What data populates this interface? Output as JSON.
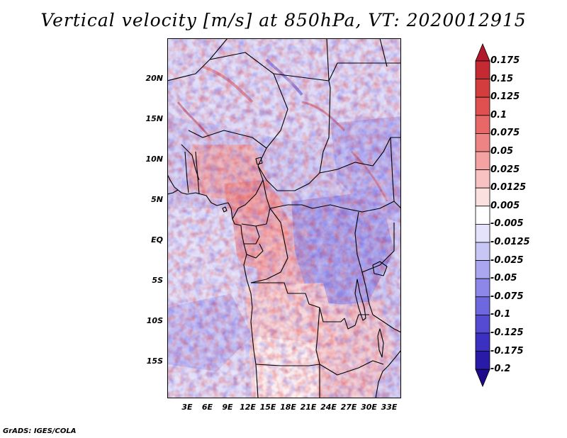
{
  "title": "Vertical velocity [m/s] at 850hPa, VT: 2020012915",
  "credit": "GrADS: IGES/COLA",
  "latitude_labels": [
    "20N",
    "15N",
    "10N",
    "5N",
    "EQ",
    "5S",
    "10S",
    "15S"
  ],
  "longitude_labels": [
    "3E",
    "6E",
    "9E",
    "12E",
    "15E",
    "18E",
    "21E",
    "24E",
    "27E",
    "30E",
    "33E"
  ],
  "colorbar": {
    "labels": [
      "0.175",
      "0.15",
      "0.125",
      "0.1",
      "0.075",
      "0.05",
      "0.025",
      "0.0125",
      "0.005",
      "-0.005",
      "-0.0125",
      "-0.025",
      "-0.05",
      "-0.075",
      "-0.1",
      "-0.125",
      "-0.175",
      "-0.2"
    ],
    "colors": [
      "#b2182b",
      "#c52a33",
      "#d43d3d",
      "#e05050",
      "#e86868",
      "#ef8484",
      "#f4a2a2",
      "#f8c2c2",
      "#fbe0e0",
      "#ffffff",
      "#e4e3fb",
      "#c8c6f6",
      "#aaa7f0",
      "#8c87e8",
      "#6e68de",
      "#544bd2",
      "#3b30c2",
      "#2a1aa8",
      "#1e0b8c"
    ]
  }
}
